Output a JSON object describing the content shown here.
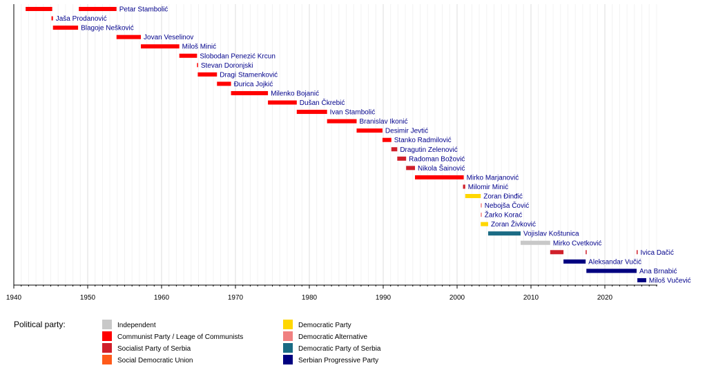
{
  "chart_data": {
    "type": "bar",
    "orientation": "horizontal-timeline",
    "xlim": [
      1940,
      2027
    ],
    "x_ticks": [
      1940,
      1950,
      1960,
      1970,
      1980,
      1990,
      2000,
      2010,
      2020
    ],
    "grid": "vertical, every year",
    "legend_title": "Political party:",
    "legend_placement": "bottom-left",
    "parties": [
      {
        "name": "Independent",
        "color": "#c8c8c8"
      },
      {
        "name": "Communist Party / Leage of Communists",
        "color": "#ff0000"
      },
      {
        "name": "Socialist Party of Serbia",
        "color": "#d01f2a"
      },
      {
        "name": "Social Democratic Union",
        "color": "#ff5a1a"
      },
      {
        "name": "Democratic Party",
        "color": "#ffd700"
      },
      {
        "name": "Democratic Alternative",
        "color": "#f08080"
      },
      {
        "name": "Democratic Party of Serbia",
        "color": "#1a6b84"
      },
      {
        "name": "Serbian Progressive Party",
        "color": "#000080"
      }
    ],
    "rows": [
      {
        "label": "Petar Stambolić",
        "terms": [
          {
            "start": 1941.6,
            "end": 1945.2,
            "party": 1
          },
          {
            "start": 1948.8,
            "end": 1953.9,
            "party": 1
          }
        ]
      },
      {
        "label": "Jaša Prodanović",
        "terms": [
          {
            "start": 1945.1,
            "end": 1945.3,
            "party": 1
          }
        ]
      },
      {
        "label": "Blagoje Nešković",
        "terms": [
          {
            "start": 1945.3,
            "end": 1948.7,
            "party": 1
          }
        ]
      },
      {
        "label": "Jovan Veselinov",
        "terms": [
          {
            "start": 1953.9,
            "end": 1957.2,
            "party": 1
          }
        ]
      },
      {
        "label": "Miloš Minić",
        "terms": [
          {
            "start": 1957.2,
            "end": 1962.4,
            "party": 1
          }
        ]
      },
      {
        "label": "Slobodan Penezić Krcun",
        "terms": [
          {
            "start": 1962.4,
            "end": 1964.8,
            "party": 1
          }
        ]
      },
      {
        "label": "Stevan Doronjski",
        "terms": [
          {
            "start": 1964.8,
            "end": 1964.9,
            "party": 1
          }
        ]
      },
      {
        "label": "Dragi Stamenković",
        "terms": [
          {
            "start": 1964.9,
            "end": 1967.5,
            "party": 1
          }
        ]
      },
      {
        "label": "Đurica Jojkić",
        "terms": [
          {
            "start": 1967.5,
            "end": 1969.4,
            "party": 1
          }
        ]
      },
      {
        "label": "Milenko Bojanić",
        "terms": [
          {
            "start": 1969.4,
            "end": 1974.4,
            "party": 1
          }
        ]
      },
      {
        "label": "Dušan Čkrebić",
        "terms": [
          {
            "start": 1974.4,
            "end": 1978.3,
            "party": 1
          }
        ]
      },
      {
        "label": "Ivan Stambolić",
        "terms": [
          {
            "start": 1978.3,
            "end": 1982.4,
            "party": 1
          }
        ]
      },
      {
        "label": "Branislav Ikonić",
        "terms": [
          {
            "start": 1982.4,
            "end": 1986.4,
            "party": 1
          }
        ]
      },
      {
        "label": "Desimir Jevtić",
        "terms": [
          {
            "start": 1986.4,
            "end": 1989.9,
            "party": 1
          }
        ]
      },
      {
        "label": "Stanko Radmilović",
        "terms": [
          {
            "start": 1989.9,
            "end": 1991.1,
            "party": 1
          }
        ]
      },
      {
        "label": "Dragutin Zelenović",
        "terms": [
          {
            "start": 1991.1,
            "end": 1991.9,
            "party": 2
          }
        ]
      },
      {
        "label": "Radoman Božović",
        "terms": [
          {
            "start": 1991.9,
            "end": 1993.1,
            "party": 2
          }
        ]
      },
      {
        "label": "Nikola Šainović",
        "terms": [
          {
            "start": 1993.1,
            "end": 1994.3,
            "party": 2
          }
        ]
      },
      {
        "label": "Mirko Marjanović",
        "terms": [
          {
            "start": 1994.3,
            "end": 2000.9,
            "party": 1
          }
        ]
      },
      {
        "label": "Milomir Minić",
        "terms": [
          {
            "start": 2000.8,
            "end": 2001.1,
            "party": 2
          }
        ]
      },
      {
        "label": "Zoran Đinđić",
        "terms": [
          {
            "start": 2001.1,
            "end": 2003.2,
            "party": 4
          }
        ]
      },
      {
        "label": "Nebojša Čović",
        "terms": [
          {
            "start": 2003.2,
            "end": 2003.3,
            "party": 5
          }
        ]
      },
      {
        "label": "Žarko Korać",
        "terms": [
          {
            "start": 2003.2,
            "end": 2003.3,
            "party": 5
          }
        ]
      },
      {
        "label": "Zoran Živković",
        "terms": [
          {
            "start": 2003.2,
            "end": 2004.2,
            "party": 4
          }
        ]
      },
      {
        "label": "Vojislav Koštunica",
        "terms": [
          {
            "start": 2004.2,
            "end": 2008.6,
            "party": 6
          }
        ]
      },
      {
        "label": "Mirko Cvetković",
        "terms": [
          {
            "start": 2008.6,
            "end": 2012.6,
            "party": 0
          }
        ]
      },
      {
        "label": "Ivica Dačić",
        "terms": [
          {
            "start": 2012.6,
            "end": 2014.4,
            "party": 2
          },
          {
            "start": 2017.4,
            "end": 2017.5,
            "party": 2
          },
          {
            "start": 2024.3,
            "end": 2024.4,
            "party": 2
          }
        ]
      },
      {
        "label": "Aleksandar Vučić",
        "terms": [
          {
            "start": 2014.4,
            "end": 2017.4,
            "party": 7
          }
        ]
      },
      {
        "label": "Ana Brnabić",
        "terms": [
          {
            "start": 2017.5,
            "end": 2024.3,
            "party": 7
          }
        ]
      },
      {
        "label": "Miloš Vučević",
        "terms": [
          {
            "start": 2024.4,
            "end": 2025.6,
            "party": 7
          }
        ]
      }
    ]
  }
}
